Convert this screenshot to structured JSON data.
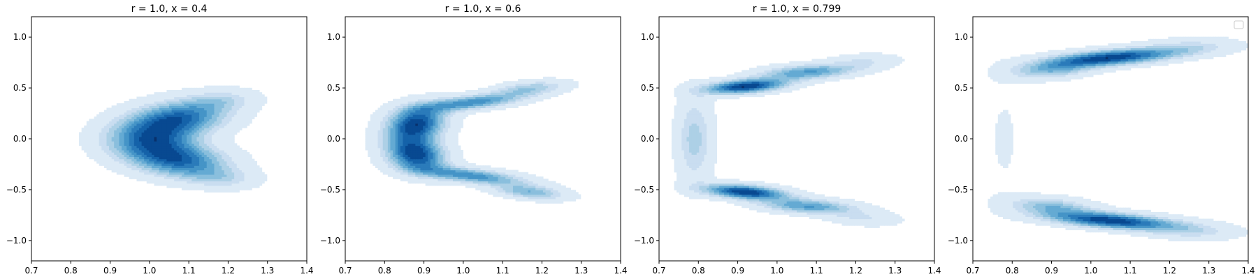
{
  "chart_data": [
    {
      "type": "contour",
      "title": "r = 1.0, x = 0.4",
      "xlim": [
        0.7,
        1.4
      ],
      "ylim": [
        -1.2,
        1.2
      ],
      "xticks": [
        0.7,
        0.8,
        0.9,
        1.0,
        1.1,
        1.2,
        1.3,
        1.4
      ],
      "yticks": [
        -1.0,
        -0.5,
        0.0,
        0.5,
        1.0
      ],
      "xtick_labels": [
        "0.7",
        "0.8",
        "0.9",
        "1.0",
        "1.1",
        "1.2",
        "1.3",
        "1.4"
      ],
      "ytick_labels": [
        "−1.0",
        "−0.5",
        "0.0",
        "0.5",
        "1.0"
      ],
      "colormap": "Blues",
      "density": {
        "levels": 10,
        "components": [
          {
            "mx": 1.07,
            "my": 0.2,
            "sx": 0.085,
            "sy": 0.12,
            "rho": 0.25,
            "w": 1.0
          },
          {
            "mx": 1.07,
            "my": -0.2,
            "sx": 0.085,
            "sy": 0.12,
            "rho": -0.25,
            "w": 1.0
          },
          {
            "mx": 1.0,
            "my": 0.0,
            "sx": 0.075,
            "sy": 0.12,
            "rho": 0.0,
            "w": 0.75
          },
          {
            "mx": 1.18,
            "my": 0.38,
            "sx": 0.06,
            "sy": 0.07,
            "rho": 0.2,
            "w": 0.3
          },
          {
            "mx": 1.18,
            "my": -0.38,
            "sx": 0.06,
            "sy": 0.07,
            "rho": -0.2,
            "w": 0.3
          }
        ]
      }
    },
    {
      "type": "contour",
      "title": "r = 1.0, x = 0.6",
      "xlim": [
        0.7,
        1.4
      ],
      "ylim": [
        -1.2,
        1.2
      ],
      "xticks": [
        0.7,
        0.8,
        0.9,
        1.0,
        1.1,
        1.2,
        1.3,
        1.4
      ],
      "yticks": [
        -1.0,
        -0.5,
        0.0,
        0.5,
        1.0
      ],
      "xtick_labels": [
        "0.7",
        "0.8",
        "0.9",
        "1.0",
        "1.1",
        "1.2",
        "1.3",
        "1.4"
      ],
      "ytick_labels": [
        "−1.0",
        "−0.5",
        "0.0",
        "0.5",
        "1.0"
      ],
      "colormap": "Blues",
      "density": {
        "levels": 10,
        "components": [
          {
            "mx": 0.88,
            "my": 0.15,
            "sx": 0.05,
            "sy": 0.12,
            "rho": 0.2,
            "w": 1.0
          },
          {
            "mx": 0.88,
            "my": -0.15,
            "sx": 0.05,
            "sy": 0.12,
            "rho": -0.2,
            "w": 1.0
          },
          {
            "mx": 1.02,
            "my": 0.36,
            "sx": 0.09,
            "sy": 0.06,
            "rho": 0.6,
            "w": 0.7
          },
          {
            "mx": 1.02,
            "my": -0.36,
            "sx": 0.09,
            "sy": 0.06,
            "rho": -0.6,
            "w": 0.7
          },
          {
            "mx": 1.17,
            "my": 0.5,
            "sx": 0.06,
            "sy": 0.05,
            "rho": 0.4,
            "w": 0.4
          },
          {
            "mx": 1.17,
            "my": -0.52,
            "sx": 0.06,
            "sy": 0.05,
            "rho": -0.4,
            "w": 0.5
          }
        ]
      }
    },
    {
      "type": "contour",
      "title": "r = 1.0, x = 0.799",
      "xlim": [
        0.7,
        1.4
      ],
      "ylim": [
        -1.2,
        1.2
      ],
      "xticks": [
        0.7,
        0.8,
        0.9,
        1.0,
        1.1,
        1.2,
        1.3,
        1.4
      ],
      "yticks": [
        -1.0,
        -0.5,
        0.0,
        0.5,
        1.0
      ],
      "xtick_labels": [
        "0.7",
        "0.8",
        "0.9",
        "1.0",
        "1.1",
        "1.2",
        "1.3",
        "1.4"
      ],
      "ytick_labels": [
        "−1.0",
        "−0.5",
        "0.0",
        "0.5",
        "1.0"
      ],
      "colormap": "Blues",
      "density": {
        "levels": 10,
        "components": [
          {
            "mx": 0.92,
            "my": 0.52,
            "sx": 0.07,
            "sy": 0.05,
            "rho": 0.4,
            "w": 1.0
          },
          {
            "mx": 0.92,
            "my": -0.52,
            "sx": 0.07,
            "sy": 0.05,
            "rho": -0.4,
            "w": 1.0
          },
          {
            "mx": 1.08,
            "my": 0.66,
            "sx": 0.08,
            "sy": 0.05,
            "rho": 0.3,
            "w": 0.6
          },
          {
            "mx": 1.08,
            "my": -0.66,
            "sx": 0.08,
            "sy": 0.05,
            "rho": -0.3,
            "w": 0.6
          },
          {
            "mx": 0.79,
            "my": 0.0,
            "sx": 0.03,
            "sy": 0.28,
            "rho": 0.0,
            "w": 0.35
          },
          {
            "mx": 1.22,
            "my": 0.76,
            "sx": 0.06,
            "sy": 0.05,
            "rho": 0.2,
            "w": 0.2
          },
          {
            "mx": 1.22,
            "my": -0.78,
            "sx": 0.06,
            "sy": 0.05,
            "rho": -0.2,
            "w": 0.2
          }
        ]
      }
    },
    {
      "type": "contour",
      "title": "",
      "xlim": [
        0.7,
        1.4
      ],
      "ylim": [
        -1.2,
        1.2
      ],
      "xticks": [
        0.7,
        0.8,
        0.9,
        1.0,
        1.1,
        1.2,
        1.3,
        1.4
      ],
      "yticks": [
        -1.0,
        -0.5,
        0.0,
        0.5,
        1.0
      ],
      "xtick_labels": [
        "0.7",
        "0.8",
        "0.9",
        "1.0",
        "1.1",
        "1.2",
        "1.3",
        "1.4"
      ],
      "ytick_labels": [
        "−1.0",
        "−0.5",
        "0.0",
        "0.5",
        "1.0"
      ],
      "colormap": "Blues",
      "legend": "top-right",
      "density": {
        "levels": 10,
        "components": [
          {
            "mx": 1.05,
            "my": 0.8,
            "sx": 0.11,
            "sy": 0.06,
            "rho": 0.5,
            "w": 1.0
          },
          {
            "mx": 1.05,
            "my": -0.8,
            "sx": 0.11,
            "sy": 0.06,
            "rho": -0.5,
            "w": 1.0
          },
          {
            "mx": 0.9,
            "my": 0.68,
            "sx": 0.07,
            "sy": 0.06,
            "rho": 0.3,
            "w": 0.45
          },
          {
            "mx": 0.9,
            "my": -0.66,
            "sx": 0.07,
            "sy": 0.06,
            "rho": -0.3,
            "w": 0.45
          },
          {
            "mx": 1.25,
            "my": 0.9,
            "sx": 0.08,
            "sy": 0.06,
            "rho": 0.2,
            "w": 0.25
          },
          {
            "mx": 1.25,
            "my": -0.9,
            "sx": 0.08,
            "sy": 0.06,
            "rho": -0.2,
            "w": 0.25
          },
          {
            "mx": 0.78,
            "my": 0.0,
            "sx": 0.04,
            "sy": 0.5,
            "rho": 0.0,
            "w": 0.06
          }
        ]
      }
    }
  ]
}
